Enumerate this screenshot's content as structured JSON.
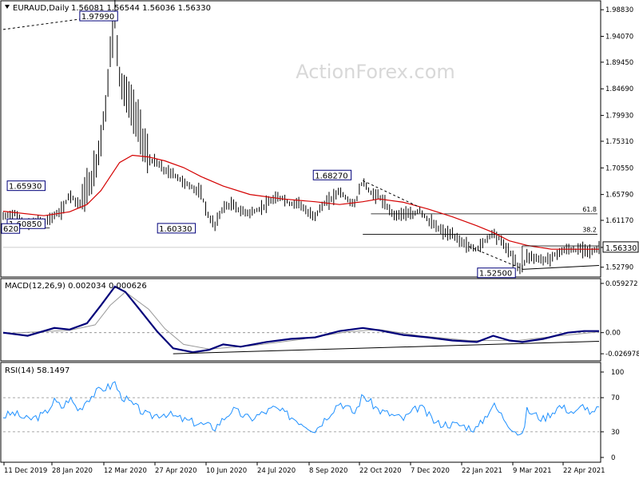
{
  "header": {
    "symbol": "EURAUD,Daily",
    "ohlc": "1.56081 1.56544 1.56036 1.56330"
  },
  "watermark": "ActionForex.com",
  "colors": {
    "bars": "#000000",
    "ma": "#d40000",
    "macd": "#00007a",
    "macd_signal": "#9a9a9a",
    "rsi": "#1e90ff",
    "label_border": "#00007a",
    "grid": "#000000",
    "watermark": "#dcdcdc"
  },
  "chart_data": [
    {
      "type": "line",
      "subtype": "ohlc-bars",
      "title": "EURAUD,Daily",
      "x_axis_labels": [
        "11 Dec 2019",
        "28 Jan 2020",
        "12 Mar 2020",
        "27 Apr 2020",
        "10 Jun 2020",
        "24 Jul 2020",
        "8 Sep 2020",
        "22 Oct 2020",
        "7 Dec 2020",
        "22 Jan 2021",
        "9 Mar 2021",
        "22 Apr 2021"
      ],
      "y_ticks": [
        "1.98830",
        "1.94070",
        "1.89450",
        "1.84690",
        "1.79930",
        "1.75310",
        "1.70550",
        "1.65790",
        "1.61170",
        "1.56330",
        "1.52790"
      ],
      "ylim": [
        1.5132,
        2.0
      ],
      "current_price": "1.56330",
      "price_points": [
        {
          "d": "2019-12-11",
          "v": 1.618
        },
        {
          "d": "2019-12-20",
          "v": 1.625
        },
        {
          "d": "2020-01-01",
          "v": 1.603
        },
        {
          "d": "2020-01-09",
          "v": 1.61
        },
        {
          "d": "2020-01-15",
          "v": 1.6085
        },
        {
          "d": "2020-01-24",
          "v": 1.62
        },
        {
          "d": "2020-01-31",
          "v": 1.63
        },
        {
          "d": "2020-02-06",
          "v": 1.6593
        },
        {
          "d": "2020-02-14",
          "v": 1.64
        },
        {
          "d": "2020-02-21",
          "v": 1.665
        },
        {
          "d": "2020-02-28",
          "v": 1.7
        },
        {
          "d": "2020-03-04",
          "v": 1.76
        },
        {
          "d": "2020-03-09",
          "v": 1.83
        },
        {
          "d": "2020-03-12",
          "v": 1.91
        },
        {
          "d": "2020-03-16",
          "v": 1.9799
        },
        {
          "d": "2020-03-20",
          "v": 1.87
        },
        {
          "d": "2020-03-25",
          "v": 1.84
        },
        {
          "d": "2020-03-31",
          "v": 1.81
        },
        {
          "d": "2020-04-06",
          "v": 1.78
        },
        {
          "d": "2020-04-14",
          "v": 1.72
        },
        {
          "d": "2020-04-21",
          "v": 1.715
        },
        {
          "d": "2020-04-28",
          "v": 1.7
        },
        {
          "d": "2020-05-05",
          "v": 1.695
        },
        {
          "d": "2020-05-14",
          "v": 1.68
        },
        {
          "d": "2020-05-22",
          "v": 1.67
        },
        {
          "d": "2020-05-29",
          "v": 1.66
        },
        {
          "d": "2020-06-05",
          "v": 1.615
        },
        {
          "d": "2020-06-10",
          "v": 1.6033
        },
        {
          "d": "2020-06-17",
          "v": 1.635
        },
        {
          "d": "2020-06-25",
          "v": 1.64
        },
        {
          "d": "2020-07-02",
          "v": 1.628
        },
        {
          "d": "2020-07-10",
          "v": 1.625
        },
        {
          "d": "2020-07-17",
          "v": 1.63
        },
        {
          "d": "2020-07-24",
          "v": 1.64
        },
        {
          "d": "2020-07-31",
          "v": 1.65
        },
        {
          "d": "2020-08-07",
          "v": 1.652
        },
        {
          "d": "2020-08-14",
          "v": 1.64
        },
        {
          "d": "2020-08-21",
          "v": 1.645
        },
        {
          "d": "2020-08-28",
          "v": 1.625
        },
        {
          "d": "2020-09-04",
          "v": 1.62
        },
        {
          "d": "2020-09-11",
          "v": 1.64
        },
        {
          "d": "2020-09-18",
          "v": 1.65
        },
        {
          "d": "2020-09-25",
          "v": 1.665
        },
        {
          "d": "2020-10-01",
          "v": 1.65
        },
        {
          "d": "2020-10-08",
          "v": 1.64
        },
        {
          "d": "2020-10-15",
          "v": 1.6827
        },
        {
          "d": "2020-10-22",
          "v": 1.66
        },
        {
          "d": "2020-10-29",
          "v": 1.655
        },
        {
          "d": "2020-11-05",
          "v": 1.635
        },
        {
          "d": "2020-11-12",
          "v": 1.62
        },
        {
          "d": "2020-11-19",
          "v": 1.625
        },
        {
          "d": "2020-11-26",
          "v": 1.62
        },
        {
          "d": "2020-12-03",
          "v": 1.63
        },
        {
          "d": "2020-12-10",
          "v": 1.612
        },
        {
          "d": "2020-12-17",
          "v": 1.6
        },
        {
          "d": "2020-12-24",
          "v": 1.59
        },
        {
          "d": "2020-12-31",
          "v": 1.585
        },
        {
          "d": "2021-01-07",
          "v": 1.575
        },
        {
          "d": "2021-01-14",
          "v": 1.565
        },
        {
          "d": "2021-01-21",
          "v": 1.56
        },
        {
          "d": "2021-01-28",
          "v": 1.575
        },
        {
          "d": "2021-02-04",
          "v": 1.59
        },
        {
          "d": "2021-02-11",
          "v": 1.575
        },
        {
          "d": "2021-02-18",
          "v": 1.555
        },
        {
          "d": "2021-02-25",
          "v": 1.53
        },
        {
          "d": "2021-03-01",
          "v": 1.525
        },
        {
          "d": "2021-03-05",
          "v": 1.548
        },
        {
          "d": "2021-03-12",
          "v": 1.545
        },
        {
          "d": "2021-03-19",
          "v": 1.54
        },
        {
          "d": "2021-03-26",
          "v": 1.545
        },
        {
          "d": "2021-04-02",
          "v": 1.555
        },
        {
          "d": "2021-04-09",
          "v": 1.56
        },
        {
          "d": "2021-04-16",
          "v": 1.558
        },
        {
          "d": "2021-04-23",
          "v": 1.562
        },
        {
          "d": "2021-04-30",
          "v": 1.555
        },
        {
          "d": "2021-05-04",
          "v": 1.56
        },
        {
          "d": "2021-05-06",
          "v": 1.5633
        }
      ],
      "ma_points": [
        {
          "d": "2019-12-11",
          "v": 1.628
        },
        {
          "d": "2020-01-15",
          "v": 1.62
        },
        {
          "d": "2020-02-06",
          "v": 1.627
        },
        {
          "d": "2020-02-21",
          "v": 1.64
        },
        {
          "d": "2020-03-04",
          "v": 1.665
        },
        {
          "d": "2020-03-12",
          "v": 1.69
        },
        {
          "d": "2020-03-20",
          "v": 1.715
        },
        {
          "d": "2020-03-31",
          "v": 1.728
        },
        {
          "d": "2020-04-14",
          "v": 1.725
        },
        {
          "d": "2020-04-28",
          "v": 1.718
        },
        {
          "d": "2020-05-14",
          "v": 1.706
        },
        {
          "d": "2020-05-29",
          "v": 1.69
        },
        {
          "d": "2020-06-17",
          "v": 1.673
        },
        {
          "d": "2020-07-10",
          "v": 1.658
        },
        {
          "d": "2020-08-07",
          "v": 1.65
        },
        {
          "d": "2020-09-04",
          "v": 1.645
        },
        {
          "d": "2020-09-25",
          "v": 1.64
        },
        {
          "d": "2020-10-15",
          "v": 1.645
        },
        {
          "d": "2020-10-29",
          "v": 1.65
        },
        {
          "d": "2020-11-19",
          "v": 1.644
        },
        {
          "d": "2020-12-10",
          "v": 1.632
        },
        {
          "d": "2020-12-31",
          "v": 1.618
        },
        {
          "d": "2021-01-21",
          "v": 1.602
        },
        {
          "d": "2021-02-04",
          "v": 1.59
        },
        {
          "d": "2021-02-18",
          "v": 1.575
        },
        {
          "d": "2021-03-05",
          "v": 1.567
        },
        {
          "d": "2021-03-26",
          "v": 1.56
        },
        {
          "d": "2021-04-16",
          "v": 1.56
        },
        {
          "d": "2021-05-06",
          "v": 1.56
        }
      ],
      "annotations": [
        {
          "text": "1.97990",
          "d": "2020-03-16",
          "v": 1.9799
        },
        {
          "text": "1.65930",
          "d": "2020-02-06",
          "v": 1.6593
        },
        {
          "text": "1.60850",
          "d": "2020-01-15",
          "v": 1.6085
        },
        {
          "text": "620",
          "d": "2019-12-11",
          "v": 1.6
        },
        {
          "text": "1.60330",
          "d": "2020-06-10",
          "v": 1.6033
        },
        {
          "text": "1.68270",
          "d": "2020-10-15",
          "v": 1.6827
        },
        {
          "text": "1.52500",
          "d": "2021-03-01",
          "v": 1.525
        }
      ],
      "fib_levels": [
        {
          "label": "61.8",
          "v": 1.6233
        },
        {
          "label": "38.2",
          "v": 1.5868
        }
      ]
    },
    {
      "type": "line",
      "title": "MACD(12,26,9) 0.002034 0.000626",
      "y_ticks": [
        "0.059272",
        "0.00",
        "-0.026978"
      ],
      "ylim": [
        -0.034,
        0.066
      ],
      "series": [
        {
          "name": "macd",
          "points": [
            {
              "d": "2019-12-11",
              "v": 0.0
            },
            {
              "d": "2020-01-01",
              "v": -0.004
            },
            {
              "d": "2020-01-24",
              "v": 0.006
            },
            {
              "d": "2020-02-06",
              "v": 0.004
            },
            {
              "d": "2020-02-21",
              "v": 0.012
            },
            {
              "d": "2020-03-04",
              "v": 0.035
            },
            {
              "d": "2020-03-16",
              "v": 0.059
            },
            {
              "d": "2020-03-25",
              "v": 0.052
            },
            {
              "d": "2020-04-06",
              "v": 0.03
            },
            {
              "d": "2020-04-21",
              "v": 0.002
            },
            {
              "d": "2020-05-05",
              "v": -0.02
            },
            {
              "d": "2020-05-22",
              "v": -0.025
            },
            {
              "d": "2020-06-05",
              "v": -0.022
            },
            {
              "d": "2020-06-17",
              "v": -0.015
            },
            {
              "d": "2020-07-02",
              "v": -0.018
            },
            {
              "d": "2020-07-24",
              "v": -0.012
            },
            {
              "d": "2020-08-14",
              "v": -0.008
            },
            {
              "d": "2020-09-04",
              "v": -0.006
            },
            {
              "d": "2020-09-25",
              "v": 0.002
            },
            {
              "d": "2020-10-15",
              "v": 0.006
            },
            {
              "d": "2020-10-29",
              "v": 0.003
            },
            {
              "d": "2020-11-19",
              "v": -0.003
            },
            {
              "d": "2020-12-10",
              "v": -0.006
            },
            {
              "d": "2020-12-31",
              "v": -0.01
            },
            {
              "d": "2021-01-21",
              "v": -0.012
            },
            {
              "d": "2021-02-04",
              "v": -0.004
            },
            {
              "d": "2021-02-18",
              "v": -0.01
            },
            {
              "d": "2021-03-01",
              "v": -0.012
            },
            {
              "d": "2021-03-19",
              "v": -0.008
            },
            {
              "d": "2021-04-09",
              "v": 0.0
            },
            {
              "d": "2021-04-23",
              "v": 0.002
            },
            {
              "d": "2021-05-06",
              "v": 0.002
            }
          ]
        },
        {
          "name": "signal",
          "points": [
            {
              "d": "2019-12-11",
              "v": -0.001
            },
            {
              "d": "2020-02-06",
              "v": 0.003
            },
            {
              "d": "2020-02-28",
              "v": 0.01
            },
            {
              "d": "2020-03-12",
              "v": 0.035
            },
            {
              "d": "2020-03-25",
              "v": 0.052
            },
            {
              "d": "2020-04-14",
              "v": 0.03
            },
            {
              "d": "2020-04-28",
              "v": 0.005
            },
            {
              "d": "2020-05-14",
              "v": -0.015
            },
            {
              "d": "2020-06-05",
              "v": -0.021
            },
            {
              "d": "2020-07-10",
              "v": -0.017
            },
            {
              "d": "2020-08-21",
              "v": -0.009
            },
            {
              "d": "2020-10-01",
              "v": 0.001
            },
            {
              "d": "2020-10-29",
              "v": 0.004
            },
            {
              "d": "2020-12-03",
              "v": -0.004
            },
            {
              "d": "2021-01-14",
              "v": -0.01
            },
            {
              "d": "2021-02-25",
              "v": -0.01
            },
            {
              "d": "2021-04-02",
              "v": -0.004
            },
            {
              "d": "2021-05-06",
              "v": 0.001
            }
          ]
        }
      ],
      "trendline": [
        {
          "d": "2020-05-05",
          "v": -0.027
        },
        {
          "d": "2021-05-06",
          "v": -0.011
        }
      ]
    },
    {
      "type": "line",
      "title": "RSI(14) 58.1497",
      "y_ticks": [
        "100",
        "70",
        "30",
        "0"
      ],
      "ylim": [
        0,
        100
      ],
      "levels": [
        70,
        30
      ],
      "series": [
        {
          "name": "rsi",
          "points": [
            {
              "d": "2019-12-11",
              "v": 48
            },
            {
              "d": "2019-12-20",
              "v": 52
            },
            {
              "d": "2020-01-01",
              "v": 44
            },
            {
              "d": "2020-01-15",
              "v": 50
            },
            {
              "d": "2020-01-24",
              "v": 66
            },
            {
              "d": "2020-01-31",
              "v": 58
            },
            {
              "d": "2020-02-06",
              "v": 70
            },
            {
              "d": "2020-02-14",
              "v": 55
            },
            {
              "d": "2020-02-21",
              "v": 68
            },
            {
              "d": "2020-03-04",
              "v": 80
            },
            {
              "d": "2020-03-12",
              "v": 83
            },
            {
              "d": "2020-03-16",
              "v": 88
            },
            {
              "d": "2020-03-20",
              "v": 74
            },
            {
              "d": "2020-03-31",
              "v": 62
            },
            {
              "d": "2020-04-14",
              "v": 48
            },
            {
              "d": "2020-04-28",
              "v": 52
            },
            {
              "d": "2020-05-14",
              "v": 44
            },
            {
              "d": "2020-06-10",
              "v": 35
            },
            {
              "d": "2020-06-25",
              "v": 56
            },
            {
              "d": "2020-07-10",
              "v": 45
            },
            {
              "d": "2020-07-31",
              "v": 58
            },
            {
              "d": "2020-08-14",
              "v": 48
            },
            {
              "d": "2020-09-04",
              "v": 32
            },
            {
              "d": "2020-09-25",
              "v": 65
            },
            {
              "d": "2020-10-08",
              "v": 52
            },
            {
              "d": "2020-10-15",
              "v": 73
            },
            {
              "d": "2020-10-29",
              "v": 55
            },
            {
              "d": "2020-11-19",
              "v": 45
            },
            {
              "d": "2020-12-03",
              "v": 60
            },
            {
              "d": "2020-12-17",
              "v": 40
            },
            {
              "d": "2021-01-07",
              "v": 38
            },
            {
              "d": "2021-01-21",
              "v": 33
            },
            {
              "d": "2021-02-04",
              "v": 62
            },
            {
              "d": "2021-02-18",
              "v": 38
            },
            {
              "d": "2021-03-01",
              "v": 24
            },
            {
              "d": "2021-03-05",
              "v": 55
            },
            {
              "d": "2021-03-19",
              "v": 45
            },
            {
              "d": "2021-04-02",
              "v": 60
            },
            {
              "d": "2021-04-16",
              "v": 52
            },
            {
              "d": "2021-04-23",
              "v": 62
            },
            {
              "d": "2021-04-30",
              "v": 50
            },
            {
              "d": "2021-05-06",
              "v": 58
            }
          ]
        }
      ]
    }
  ]
}
